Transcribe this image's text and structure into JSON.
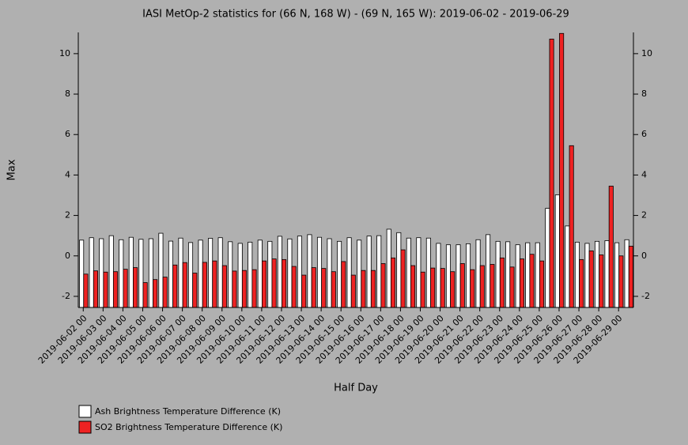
{
  "chart_data": {
    "type": "bar",
    "title": "IASI MetOp-2 statistics for (66 N, 168 W) - (69 N, 165 W): 2019-06-02 - 2019-06-29",
    "x_label": "Half Day",
    "y_label": "Max",
    "categories": [
      "2019-06-02 00",
      null,
      "2019-06-03 00",
      null,
      "2019-06-04 00",
      null,
      "2019-06-05 00",
      null,
      "2019-06-06 00",
      null,
      "2019-06-07 00",
      null,
      "2019-06-08 00",
      null,
      "2019-06-09 00",
      null,
      "2019-06-10 00",
      null,
      "2019-06-11 00",
      null,
      "2019-06-12 00",
      null,
      "2019-06-13 00",
      null,
      "2019-06-14 00",
      null,
      "2019-06-15 00",
      null,
      "2019-06-16 00",
      null,
      "2019-06-17 00",
      null,
      "2019-06-18 00",
      null,
      "2019-06-19 00",
      null,
      "2019-06-20 00",
      null,
      "2019-06-21 00",
      null,
      "2019-06-22 00",
      null,
      "2019-06-23 00",
      null,
      "2019-06-24 00",
      null,
      "2019-06-25 00",
      null,
      "2019-06-26 00",
      null,
      "2019-06-27 00",
      null,
      "2019-06-28 00",
      null,
      "2019-06-29 00",
      null
    ],
    "series": [
      {
        "name": "Ash Brightness Temperature Difference (K)",
        "color": "#ffffff",
        "values": [
          0.78,
          0.9,
          0.85,
          1.0,
          0.8,
          0.92,
          0.82,
          0.85,
          1.12,
          0.73,
          0.88,
          0.66,
          0.78,
          0.87,
          0.9,
          0.7,
          0.62,
          0.68,
          0.78,
          0.72,
          0.97,
          0.84,
          0.98,
          1.05,
          0.92,
          0.85,
          0.72,
          0.9,
          0.78,
          0.98,
          1.0,
          1.32,
          1.15,
          0.88,
          0.9,
          0.88,
          0.62,
          0.55,
          0.55,
          0.6,
          0.8,
          1.05,
          0.72,
          0.7,
          0.55,
          0.65,
          0.65,
          2.35,
          3.02,
          1.48,
          0.68,
          0.62,
          0.72,
          0.75,
          0.65,
          0.8
        ]
      },
      {
        "name": "SO2 Brightness Temperature Difference (K)",
        "color": "#ee2222",
        "values": [
          -0.9,
          -0.74,
          -0.8,
          -0.78,
          -0.66,
          -0.58,
          -1.32,
          -1.17,
          -1.05,
          -0.45,
          -0.33,
          -0.85,
          -0.32,
          -0.25,
          -0.48,
          -0.75,
          -0.72,
          -0.68,
          -0.25,
          -0.15,
          -0.18,
          -0.52,
          -0.95,
          -0.58,
          -0.62,
          -0.78,
          -0.28,
          -0.95,
          -0.72,
          -0.72,
          -0.38,
          -0.1,
          0.3,
          -0.48,
          -0.8,
          -0.6,
          -0.62,
          -0.78,
          -0.38,
          -0.68,
          -0.48,
          -0.42,
          -0.1,
          -0.55,
          -0.15,
          0.08,
          -0.25,
          10.72,
          11.0,
          5.45,
          -0.18,
          0.25,
          0.05,
          3.45,
          0.0,
          0.48
        ]
      }
    ],
    "ylim": [
      -2.55,
      11.05
    ],
    "yticks": [
      -2,
      0,
      2,
      4,
      6,
      8,
      10
    ]
  }
}
